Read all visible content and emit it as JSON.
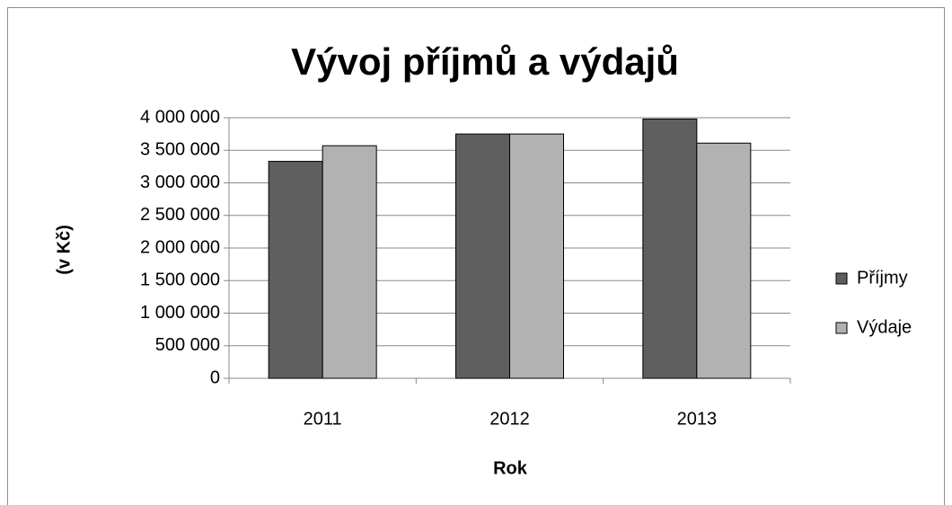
{
  "chart_data": {
    "type": "bar",
    "title": "Vývoj příjmů a výdajů",
    "x_label": "Rok",
    "y_label": "(v Kč)",
    "categories": [
      "2011",
      "2012",
      "2013"
    ],
    "series": [
      {
        "name": "Příjmy",
        "color": "#5f5f5f",
        "values": [
          3330000,
          3750000,
          3980000
        ]
      },
      {
        "name": "Výdaje",
        "color": "#b2b2b2",
        "values": [
          3570000,
          3750000,
          3610000
        ]
      }
    ],
    "ylim": [
      0,
      4000000
    ],
    "yticks": [
      0,
      {
        "value": 500000,
        "label": "500 000"
      },
      {
        "value": 1000000,
        "label": "1 000 000"
      },
      {
        "value": 1500000,
        "label": "1 500 000"
      },
      {
        "value": 2000000,
        "label": "2 000 000"
      },
      {
        "value": 2500000,
        "label": "2 500 000"
      },
      {
        "value": 3000000,
        "label": "3 000 000"
      },
      {
        "value": 3500000,
        "label": "3 500 000"
      },
      {
        "value": 4000000,
        "label": "4 000 000"
      }
    ],
    "grid": true,
    "legend": "right"
  }
}
